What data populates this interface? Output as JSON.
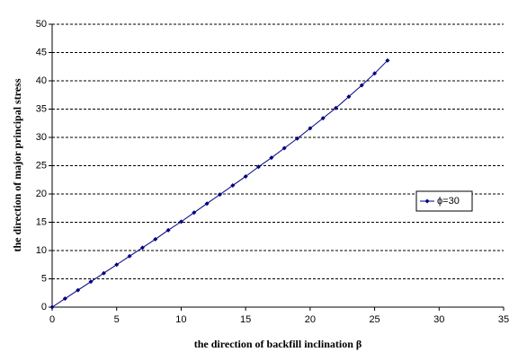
{
  "chart_data": {
    "type": "line",
    "x_label": "the direction of backfill inclination β",
    "y_label": "the direction of major principal stress",
    "x": [
      0,
      1,
      2,
      3,
      4,
      5,
      6,
      7,
      8,
      9,
      10,
      11,
      12,
      13,
      14,
      15,
      16,
      17,
      18,
      19,
      20,
      21,
      22,
      23,
      24,
      25,
      26
    ],
    "series": [
      {
        "name": "ϕ=30",
        "color": "#000080",
        "values": [
          0,
          1.5,
          3.0,
          4.5,
          6.0,
          7.5,
          9.0,
          10.5,
          12.0,
          13.6,
          15.1,
          16.7,
          18.3,
          19.9,
          21.5,
          23.1,
          24.8,
          26.4,
          28.1,
          29.8,
          31.6,
          33.4,
          35.2,
          37.2,
          39.2,
          41.3,
          43.6
        ]
      }
    ],
    "xlim": [
      0,
      35
    ],
    "xticks": [
      0,
      5,
      10,
      15,
      20,
      25,
      30,
      35
    ],
    "ylim": [
      0,
      50
    ],
    "yticks": [
      0,
      5,
      10,
      15,
      20,
      25,
      30,
      35,
      40,
      45,
      50
    ],
    "grid": true,
    "legend": "right"
  }
}
